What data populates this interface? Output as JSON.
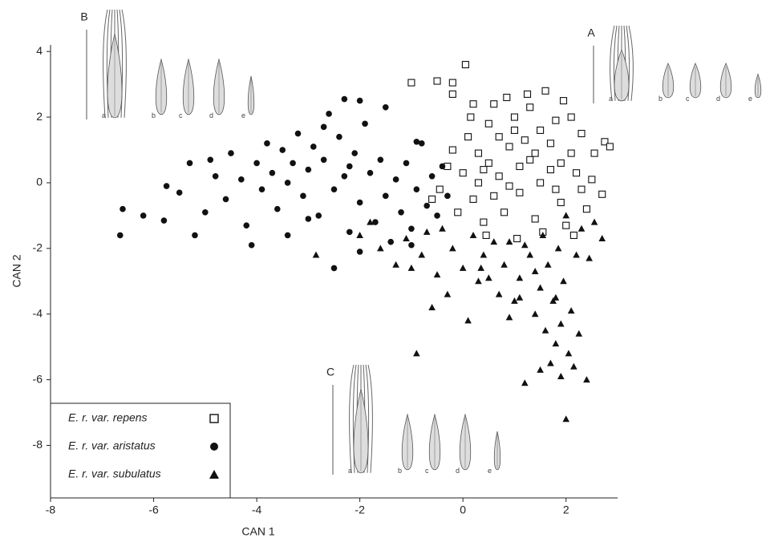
{
  "chart_data": {
    "type": "scatter",
    "x_label": "CAN 1",
    "y_label": "CAN 2",
    "xlim": [
      -8,
      3
    ],
    "ylim": [
      -9.6,
      4.2
    ],
    "xticks": [
      -8,
      -6,
      -4,
      -2,
      0,
      2
    ],
    "yticks": [
      -8,
      -6,
      -4,
      -2,
      0,
      2,
      4
    ],
    "legend": "lower left",
    "series": [
      {
        "name": "E. r. var. repens",
        "marker": "square",
        "color": "#111111",
        "points": [
          [
            0.1,
            1.4
          ],
          [
            0.3,
            0.9
          ],
          [
            0.5,
            1.8
          ],
          [
            0.7,
            0.2
          ],
          [
            0.9,
            1.1
          ],
          [
            1.1,
            -0.3
          ],
          [
            1.3,
            0.7
          ],
          [
            1.5,
            1.6
          ],
          [
            1.7,
            0.4
          ],
          [
            1.9,
            -0.6
          ],
          [
            2.1,
            0.9
          ],
          [
            2.3,
            1.5
          ],
          [
            2.5,
            0.1
          ],
          [
            0.2,
            -0.5
          ],
          [
            0.4,
            -1.2
          ],
          [
            0.6,
            2.4
          ],
          [
            0.8,
            -0.9
          ],
          [
            1.0,
            2.0
          ],
          [
            1.2,
            1.3
          ],
          [
            1.4,
            -1.1
          ],
          [
            1.6,
            2.8
          ],
          [
            1.8,
            1.9
          ],
          [
            2.0,
            -1.3
          ],
          [
            2.2,
            0.3
          ],
          [
            2.4,
            -0.8
          ],
          [
            0.0,
            0.3
          ],
          [
            -0.1,
            -0.9
          ],
          [
            -0.3,
            0.5
          ],
          [
            -0.2,
            1.0
          ],
          [
            0.3,
            0.0
          ],
          [
            0.5,
            0.6
          ],
          [
            0.7,
            1.4
          ],
          [
            0.9,
            -0.1
          ],
          [
            1.1,
            0.5
          ],
          [
            1.3,
            2.3
          ],
          [
            1.5,
            0.0
          ],
          [
            1.7,
            1.2
          ],
          [
            1.9,
            0.6
          ],
          [
            2.1,
            2.0
          ],
          [
            2.3,
            -0.2
          ],
          [
            0.45,
            -1.6
          ],
          [
            1.05,
            -1.7
          ],
          [
            1.55,
            -1.5
          ],
          [
            2.15,
            -1.6
          ],
          [
            0.15,
            2.0
          ],
          [
            0.85,
            2.6
          ],
          [
            1.25,
            2.7
          ],
          [
            1.95,
            2.5
          ],
          [
            2.55,
            0.9
          ],
          [
            -0.45,
            -0.2
          ],
          [
            -1.0,
            3.05
          ],
          [
            -0.5,
            3.1
          ],
          [
            0.05,
            3.6
          ],
          [
            -0.2,
            3.05
          ],
          [
            -0.2,
            2.7
          ],
          [
            0.2,
            2.4
          ],
          [
            2.75,
            1.25
          ],
          [
            2.85,
            1.1
          ],
          [
            2.7,
            -0.35
          ],
          [
            -0.6,
            -0.5
          ],
          [
            0.6,
            -0.4
          ],
          [
            1.4,
            0.9
          ],
          [
            1.8,
            -0.2
          ],
          [
            1.0,
            1.6
          ],
          [
            0.4,
            0.4
          ]
        ]
      },
      {
        "name": "E. r. var. aristatus",
        "marker": "circle",
        "color": "#111111",
        "points": [
          [
            -6.6,
            -0.8
          ],
          [
            -6.65,
            -1.6
          ],
          [
            -6.2,
            -1.0
          ],
          [
            -5.8,
            -1.15
          ],
          [
            -5.75,
            -0.1
          ],
          [
            -5.5,
            -0.3
          ],
          [
            -5.3,
            0.6
          ],
          [
            -5.2,
            -1.6
          ],
          [
            -5.0,
            -0.9
          ],
          [
            -4.9,
            0.7
          ],
          [
            -4.6,
            -0.5
          ],
          [
            -4.5,
            0.9
          ],
          [
            -4.3,
            0.1
          ],
          [
            -4.2,
            -1.3
          ],
          [
            -4.0,
            0.6
          ],
          [
            -3.9,
            -0.2
          ],
          [
            -3.8,
            1.2
          ],
          [
            -3.7,
            0.3
          ],
          [
            -3.6,
            -0.8
          ],
          [
            -3.5,
            1.0
          ],
          [
            -3.4,
            0.0
          ],
          [
            -3.3,
            0.6
          ],
          [
            -3.2,
            1.5
          ],
          [
            -3.1,
            -0.4
          ],
          [
            -3.0,
            0.4
          ],
          [
            -2.9,
            1.1
          ],
          [
            -2.8,
            -1.0
          ],
          [
            -2.7,
            0.7
          ],
          [
            -2.6,
            2.1
          ],
          [
            -2.5,
            -0.2
          ],
          [
            -2.4,
            1.4
          ],
          [
            -2.3,
            0.2
          ],
          [
            -2.2,
            -1.5
          ],
          [
            -2.1,
            0.9
          ],
          [
            -2.0,
            -0.6
          ],
          [
            -1.9,
            1.8
          ],
          [
            -1.8,
            0.3
          ],
          [
            -1.7,
            -1.2
          ],
          [
            -1.6,
            0.7
          ],
          [
            -1.5,
            -0.4
          ],
          [
            -1.4,
            -1.8
          ],
          [
            -1.3,
            0.1
          ],
          [
            -1.2,
            -0.9
          ],
          [
            -1.1,
            0.6
          ],
          [
            -1.0,
            -1.4
          ],
          [
            -0.9,
            -0.2
          ],
          [
            -0.8,
            1.2
          ],
          [
            -0.7,
            -0.7
          ],
          [
            -0.6,
            0.2
          ],
          [
            -0.5,
            -1.0
          ],
          [
            -0.4,
            0.5
          ],
          [
            -0.3,
            -0.4
          ],
          [
            -2.5,
            -2.6
          ],
          [
            -2.3,
            2.55
          ],
          [
            -2.0,
            2.5
          ],
          [
            -1.5,
            2.3
          ],
          [
            -4.1,
            -1.9
          ],
          [
            -3.4,
            -1.6
          ],
          [
            -2.0,
            -2.1
          ],
          [
            -4.8,
            0.2
          ],
          [
            -3.0,
            -1.1
          ],
          [
            -2.7,
            1.7
          ],
          [
            -1.0,
            -1.9
          ],
          [
            -0.9,
            1.25
          ],
          [
            -2.2,
            0.5
          ]
        ]
      },
      {
        "name": "E. r. var. subulatus",
        "marker": "triangle",
        "color": "#111111",
        "points": [
          [
            -2.85,
            -2.2
          ],
          [
            -2.0,
            -1.6
          ],
          [
            -1.8,
            -1.2
          ],
          [
            -1.6,
            -2.0
          ],
          [
            -1.3,
            -2.5
          ],
          [
            -1.1,
            -1.7
          ],
          [
            -1.0,
            -2.6
          ],
          [
            -0.9,
            -5.2
          ],
          [
            -0.8,
            -2.2
          ],
          [
            -0.6,
            -3.8
          ],
          [
            -0.5,
            -2.8
          ],
          [
            -0.4,
            -1.4
          ],
          [
            -0.3,
            -3.4
          ],
          [
            -0.2,
            -2.0
          ],
          [
            0.0,
            -2.6
          ],
          [
            0.1,
            -4.2
          ],
          [
            0.2,
            -1.6
          ],
          [
            0.3,
            -3.0
          ],
          [
            0.4,
            -2.2
          ],
          [
            0.5,
            -2.9
          ],
          [
            0.6,
            -1.8
          ],
          [
            0.7,
            -3.4
          ],
          [
            0.8,
            -2.5
          ],
          [
            0.9,
            -4.1
          ],
          [
            1.0,
            -3.6
          ],
          [
            1.1,
            -2.9
          ],
          [
            1.2,
            -6.1
          ],
          [
            1.3,
            -2.2
          ],
          [
            1.4,
            -4.0
          ],
          [
            1.5,
            -3.2
          ],
          [
            1.6,
            -4.5
          ],
          [
            1.65,
            -2.5
          ],
          [
            1.7,
            -5.5
          ],
          [
            1.75,
            -3.6
          ],
          [
            1.8,
            -4.9
          ],
          [
            1.85,
            -2.0
          ],
          [
            1.9,
            -4.3
          ],
          [
            1.95,
            -3.0
          ],
          [
            2.0,
            -7.2
          ],
          [
            2.05,
            -5.2
          ],
          [
            2.1,
            -3.9
          ],
          [
            2.15,
            -5.6
          ],
          [
            2.2,
            -2.2
          ],
          [
            2.25,
            -4.6
          ],
          [
            2.3,
            -1.4
          ],
          [
            2.4,
            -6.0
          ],
          [
            2.45,
            -2.3
          ],
          [
            2.55,
            -1.2
          ],
          [
            2.7,
            -1.7
          ],
          [
            1.5,
            -5.7
          ],
          [
            1.9,
            -5.9
          ],
          [
            0.9,
            -1.8
          ],
          [
            1.2,
            -1.9
          ],
          [
            -0.7,
            -1.5
          ],
          [
            1.55,
            -1.6
          ],
          [
            0.35,
            -2.6
          ],
          [
            1.1,
            -3.5
          ],
          [
            1.8,
            -3.5
          ],
          [
            2.0,
            -1.0
          ],
          [
            1.4,
            -2.7
          ]
        ]
      }
    ],
    "illustrations": [
      {
        "label": "B",
        "parts": [
          "a",
          "b",
          "c",
          "d",
          "e"
        ]
      },
      {
        "label": "A",
        "parts": [
          "a",
          "b",
          "c",
          "d",
          "e"
        ]
      },
      {
        "label": "C",
        "parts": [
          "a",
          "b",
          "c",
          "d",
          "e"
        ]
      }
    ]
  }
}
